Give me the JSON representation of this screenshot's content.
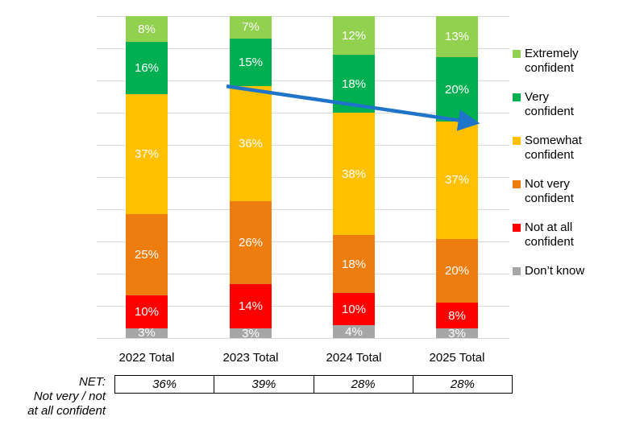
{
  "chart_data": {
    "type": "bar",
    "variant": "stacked-100",
    "title": "",
    "xlabel": "",
    "ylabel": "",
    "ylim": [
      0,
      100
    ],
    "grid": true,
    "gridline_color": "#D9D9D9",
    "legend_position": "right",
    "data_label_suffix": "%",
    "categories": [
      "2022 Total",
      "2023 Total",
      "2024 Total",
      "2025 Total"
    ],
    "series": [
      {
        "name": "Extremely confident",
        "legend_lines": [
          "Extremely",
          "confident"
        ],
        "color": "#92D050",
        "values": [
          8,
          7,
          12,
          13
        ]
      },
      {
        "name": "Very confident",
        "legend_lines": [
          "Very",
          "confident"
        ],
        "color": "#00B050",
        "values": [
          16,
          15,
          18,
          20
        ]
      },
      {
        "name": "Somewhat confident",
        "legend_lines": [
          "Somewhat",
          "confident"
        ],
        "color": "#FFC000",
        "values": [
          37,
          36,
          38,
          37
        ]
      },
      {
        "name": "Not very confident",
        "legend_lines": [
          "Not very",
          "confident"
        ],
        "color": "#ED7D0E",
        "values": [
          25,
          26,
          18,
          20
        ]
      },
      {
        "name": "Not at all confident",
        "legend_lines": [
          "Not at all",
          "confident"
        ],
        "color": "#FF0000",
        "values": [
          10,
          14,
          10,
          8
        ]
      },
      {
        "name": "Don’t know",
        "legend_lines": [
          "Don’t know"
        ],
        "color": "#A6A6A6",
        "values": [
          3,
          3,
          4,
          3
        ]
      }
    ],
    "trend_arrow": {
      "color": "#1E74C8",
      "from_category": "2023 Total",
      "to_category": "2025 Total",
      "at_boundary": "top of Somewhat confident"
    }
  },
  "net": {
    "label_lines": [
      "NET:",
      "Not very / not",
      "at all confident"
    ],
    "values": [
      "36%",
      "39%",
      "28%",
      "28%"
    ]
  }
}
